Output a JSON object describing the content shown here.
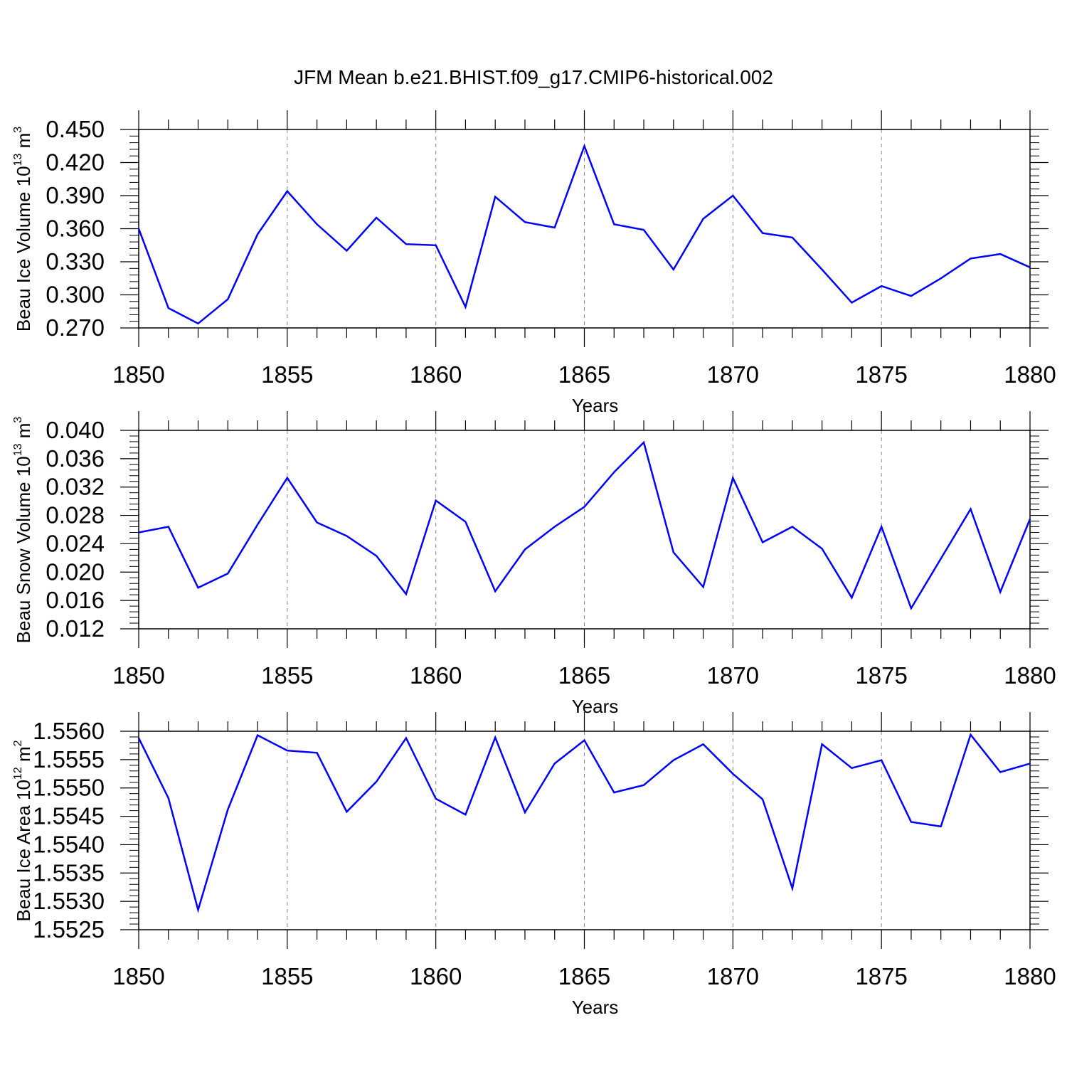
{
  "title": "JFM Mean b.e21.BHIST.f09_g17.CMIP6-historical.002",
  "chart_data": [
    {
      "type": "line",
      "xlabel": "Years",
      "ylabel": {
        "text": "Beau Ice Volume 10",
        "sup": "13",
        "unit": " m",
        "unit_sup": "3"
      },
      "xlim": [
        1850,
        1880
      ],
      "ylim": [
        0.27,
        0.45
      ],
      "xticks": [
        "1850",
        "1855",
        "1860",
        "1865",
        "1870",
        "1875",
        "1880"
      ],
      "yticks": [
        "0.270",
        "0.300",
        "0.330",
        "0.360",
        "0.390",
        "0.420",
        "0.450"
      ],
      "ytick_values": [
        0.27,
        0.3,
        0.33,
        0.36,
        0.39,
        0.42,
        0.45
      ],
      "grid": "vertical-dashed",
      "line_color": "#0000ff",
      "x": [
        1850,
        1851,
        1852,
        1853,
        1854,
        1855,
        1856,
        1857,
        1858,
        1859,
        1860,
        1861,
        1862,
        1863,
        1864,
        1865,
        1866,
        1867,
        1868,
        1869,
        1870,
        1871,
        1872,
        1873,
        1874,
        1875,
        1876,
        1877,
        1878,
        1879,
        1880
      ],
      "values": [
        0.36,
        0.288,
        0.274,
        0.296,
        0.355,
        0.394,
        0.364,
        0.34,
        0.37,
        0.346,
        0.345,
        0.289,
        0.389,
        0.366,
        0.361,
        0.435,
        0.364,
        0.359,
        0.323,
        0.369,
        0.39,
        0.356,
        0.352,
        0.323,
        0.293,
        0.308,
        0.299,
        0.315,
        0.333,
        0.337,
        0.325
      ]
    },
    {
      "type": "line",
      "xlabel": "Years",
      "ylabel": {
        "text": "Beau Snow Volume 10",
        "sup": "13",
        "unit": " m",
        "unit_sup": "3"
      },
      "xlim": [
        1850,
        1880
      ],
      "ylim": [
        0.012,
        0.04
      ],
      "xticks": [
        "1850",
        "1855",
        "1860",
        "1865",
        "1870",
        "1875",
        "1880"
      ],
      "yticks": [
        "0.012",
        "0.016",
        "0.020",
        "0.024",
        "0.028",
        "0.032",
        "0.036",
        "0.040"
      ],
      "ytick_values": [
        0.012,
        0.016,
        0.02,
        0.024,
        0.028,
        0.032,
        0.036,
        0.04
      ],
      "grid": "vertical-dashed",
      "line_color": "#0000ff",
      "x": [
        1850,
        1851,
        1852,
        1853,
        1854,
        1855,
        1856,
        1857,
        1858,
        1859,
        1860,
        1861,
        1862,
        1863,
        1864,
        1865,
        1866,
        1867,
        1868,
        1869,
        1870,
        1871,
        1872,
        1873,
        1874,
        1875,
        1876,
        1877,
        1878,
        1879,
        1880
      ],
      "values": [
        0.0256,
        0.0264,
        0.0178,
        0.0198,
        0.0267,
        0.0333,
        0.027,
        0.0251,
        0.0223,
        0.0169,
        0.0301,
        0.0271,
        0.0173,
        0.0232,
        0.0264,
        0.0292,
        0.0341,
        0.0383,
        0.0228,
        0.0179,
        0.0333,
        0.0242,
        0.0264,
        0.0233,
        0.0164,
        0.0264,
        0.0149,
        0.0219,
        0.0289,
        0.0172,
        0.0275
      ]
    },
    {
      "type": "line",
      "xlabel": "Years",
      "ylabel": {
        "text": "Beau Ice Area 10",
        "sup": "12",
        "unit": " m",
        "unit_sup": "2"
      },
      "xlim": [
        1850,
        1880
      ],
      "ylim": [
        1.5525,
        1.556
      ],
      "xticks": [
        "1850",
        "1855",
        "1860",
        "1865",
        "1870",
        "1875",
        "1880"
      ],
      "yticks": [
        "1.5525",
        "1.5530",
        "1.5535",
        "1.5540",
        "1.5545",
        "1.5550",
        "1.5555",
        "1.5560"
      ],
      "ytick_values": [
        1.5525,
        1.553,
        1.5535,
        1.554,
        1.5545,
        1.555,
        1.5555,
        1.556
      ],
      "grid": "vertical-dashed",
      "line_color": "#0000ff",
      "x": [
        1850,
        1851,
        1852,
        1853,
        1854,
        1855,
        1856,
        1857,
        1858,
        1859,
        1860,
        1861,
        1862,
        1863,
        1864,
        1865,
        1866,
        1867,
        1868,
        1869,
        1870,
        1871,
        1872,
        1873,
        1874,
        1875,
        1876,
        1877,
        1878,
        1879,
        1880
      ],
      "values": [
        1.55588,
        1.55482,
        1.55285,
        1.55462,
        1.55593,
        1.55566,
        1.55562,
        1.55458,
        1.55511,
        1.55588,
        1.55481,
        1.55453,
        1.55589,
        1.55457,
        1.55543,
        1.55584,
        1.55492,
        1.55505,
        1.55549,
        1.55577,
        1.55525,
        1.5548,
        1.55323,
        1.55577,
        1.55535,
        1.55549,
        1.5544,
        1.55432,
        1.55594,
        1.55528,
        1.55543
      ]
    }
  ]
}
